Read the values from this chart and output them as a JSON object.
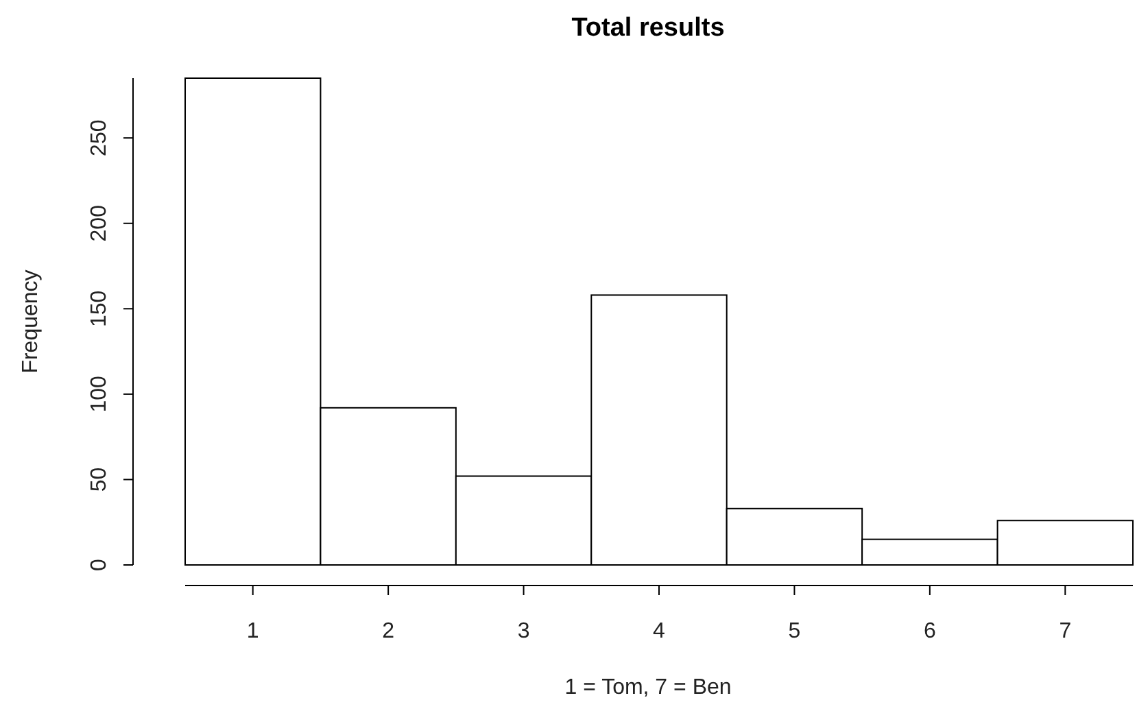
{
  "chart_data": {
    "type": "histogram",
    "title": "Total results",
    "xlabel": "1 = Tom, 7 = Ben",
    "ylabel": "Frequency",
    "bins": [
      0.5,
      1.5,
      2.5,
      3.5,
      4.5,
      5.5,
      6.5,
      7.5
    ],
    "values": [
      285,
      92,
      52,
      158,
      33,
      15,
      26
    ],
    "color": "#ffffff",
    "xlim": [
      0.5,
      7.5
    ],
    "xticks": [
      1,
      2,
      3,
      4,
      5,
      6,
      7
    ],
    "ylim": [
      0,
      285
    ],
    "yticks": [
      0,
      50,
      100,
      150,
      200,
      250
    ],
    "grid": false
  }
}
